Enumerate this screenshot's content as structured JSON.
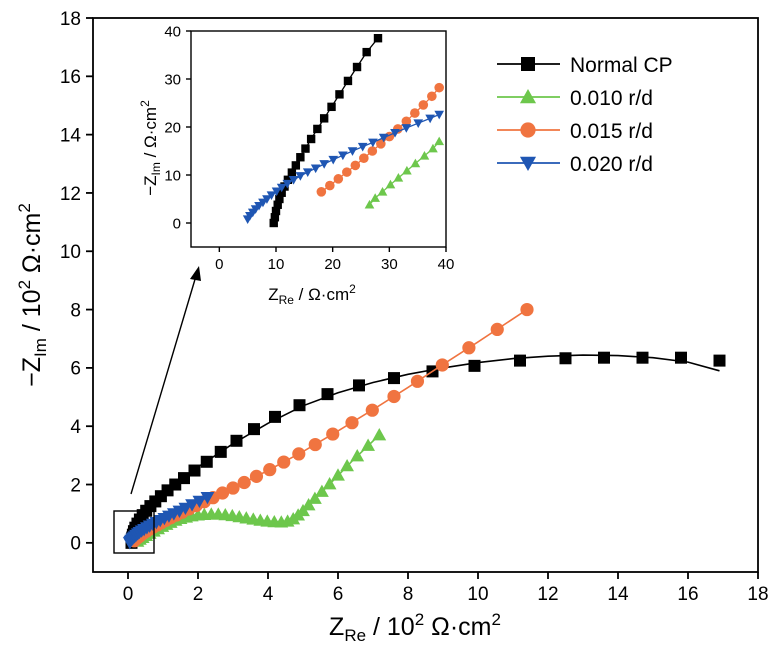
{
  "chart_data": {
    "type": "scatter",
    "xlabel": {
      "main": "Z",
      "sub": "Re",
      "rest": " / 10",
      "sup": "2",
      "tail": " Ω·cm",
      "sup2": "2"
    },
    "ylabel": {
      "main": "−Z",
      "sub": "Im",
      "rest": " / 10",
      "sup": "2",
      "tail": " Ω·cm",
      "sup2": "2"
    },
    "xlim": [
      -1,
      18
    ],
    "ylim": [
      -1,
      18
    ],
    "xticks": [
      0,
      2,
      4,
      6,
      8,
      10,
      12,
      14,
      16,
      18
    ],
    "yticks": [
      0,
      2,
      4,
      6,
      8,
      10,
      12,
      14,
      16,
      18
    ],
    "legend_position": "top-right",
    "series": [
      {
        "name": "Normal CP",
        "color": "#000000",
        "marker": "square",
        "points": [
          [
            0.1,
            0.0
          ],
          [
            0.11,
            0.1
          ],
          [
            0.12,
            0.18
          ],
          [
            0.14,
            0.28
          ],
          [
            0.17,
            0.4
          ],
          [
            0.21,
            0.52
          ],
          [
            0.27,
            0.66
          ],
          [
            0.34,
            0.8
          ],
          [
            0.42,
            0.95
          ],
          [
            0.52,
            1.1
          ],
          [
            0.64,
            1.26
          ],
          [
            0.78,
            1.42
          ],
          [
            0.94,
            1.6
          ],
          [
            1.13,
            1.8
          ],
          [
            1.35,
            2.0
          ],
          [
            1.6,
            2.22
          ],
          [
            1.9,
            2.48
          ],
          [
            2.25,
            2.78
          ],
          [
            2.65,
            3.12
          ],
          [
            3.1,
            3.5
          ],
          [
            3.6,
            3.9
          ],
          [
            4.2,
            4.32
          ],
          [
            4.9,
            4.72
          ],
          [
            5.7,
            5.1
          ],
          [
            6.6,
            5.4
          ],
          [
            7.6,
            5.65
          ],
          [
            8.7,
            5.88
          ],
          [
            9.9,
            6.07
          ],
          [
            11.2,
            6.25
          ],
          [
            12.5,
            6.33
          ],
          [
            13.6,
            6.35
          ],
          [
            14.7,
            6.35
          ],
          [
            15.8,
            6.35
          ],
          [
            16.9,
            6.25
          ]
        ],
        "fit": [
          [
            0.1,
            0.0
          ],
          [
            0.4,
            0.75
          ],
          [
            1.0,
            1.6
          ],
          [
            2.0,
            2.6
          ],
          [
            3.0,
            3.4
          ],
          [
            4.0,
            4.1
          ],
          [
            5.0,
            4.7
          ],
          [
            6.0,
            5.15
          ],
          [
            7.0,
            5.5
          ],
          [
            8.0,
            5.78
          ],
          [
            9.0,
            6.0
          ],
          [
            10.0,
            6.18
          ],
          [
            11.0,
            6.32
          ],
          [
            12.0,
            6.4
          ],
          [
            13.0,
            6.44
          ],
          [
            14.0,
            6.42
          ],
          [
            15.0,
            6.35
          ],
          [
            16.0,
            6.2
          ],
          [
            16.9,
            5.9
          ]
        ]
      },
      {
        "name": "0.010 r/d",
        "color": "#6dc74c",
        "marker": "triangle-up",
        "points": [
          [
            0.27,
            0.05
          ],
          [
            0.34,
            0.12
          ],
          [
            0.42,
            0.18
          ],
          [
            0.52,
            0.25
          ],
          [
            0.62,
            0.32
          ],
          [
            0.74,
            0.4
          ],
          [
            0.86,
            0.48
          ],
          [
            0.98,
            0.56
          ],
          [
            1.1,
            0.63
          ],
          [
            1.22,
            0.7
          ],
          [
            1.36,
            0.77
          ],
          [
            1.5,
            0.83
          ],
          [
            1.66,
            0.88
          ],
          [
            1.82,
            0.92
          ],
          [
            2.0,
            0.95
          ],
          [
            2.18,
            0.97
          ],
          [
            2.38,
            0.98
          ],
          [
            2.58,
            0.98
          ],
          [
            2.78,
            0.96
          ],
          [
            2.98,
            0.93
          ],
          [
            3.18,
            0.89
          ],
          [
            3.38,
            0.85
          ],
          [
            3.58,
            0.81
          ],
          [
            3.78,
            0.77
          ],
          [
            3.98,
            0.74
          ],
          [
            4.18,
            0.72
          ],
          [
            4.38,
            0.71
          ],
          [
            4.56,
            0.74
          ],
          [
            4.72,
            0.82
          ],
          [
            4.86,
            0.95
          ],
          [
            5.0,
            1.1
          ],
          [
            5.16,
            1.3
          ],
          [
            5.34,
            1.52
          ],
          [
            5.54,
            1.76
          ],
          [
            5.76,
            2.02
          ],
          [
            6.0,
            2.32
          ],
          [
            6.26,
            2.64
          ],
          [
            6.55,
            2.98
          ],
          [
            6.86,
            3.34
          ],
          [
            7.18,
            3.7
          ]
        ],
        "fit": [
          [
            0.27,
            0.05
          ],
          [
            0.8,
            0.45
          ],
          [
            1.4,
            0.78
          ],
          [
            2.0,
            0.95
          ],
          [
            2.6,
            0.97
          ],
          [
            3.2,
            0.89
          ],
          [
            3.8,
            0.77
          ],
          [
            4.4,
            0.71
          ],
          [
            4.8,
            0.88
          ],
          [
            5.2,
            1.34
          ],
          [
            5.8,
            2.06
          ],
          [
            6.4,
            2.8
          ],
          [
            7.18,
            3.7
          ]
        ]
      },
      {
        "name": "0.015 r/d",
        "color": "#f07440",
        "marker": "circle",
        "points": [
          [
            0.18,
            0.07
          ],
          [
            0.22,
            0.12
          ],
          [
            0.27,
            0.17
          ],
          [
            0.32,
            0.22
          ],
          [
            0.38,
            0.28
          ],
          [
            0.45,
            0.34
          ],
          [
            0.53,
            0.4
          ],
          [
            0.62,
            0.47
          ],
          [
            0.72,
            0.54
          ],
          [
            0.83,
            0.61
          ],
          [
            0.95,
            0.69
          ],
          [
            1.08,
            0.77
          ],
          [
            1.22,
            0.86
          ],
          [
            1.38,
            0.95
          ],
          [
            1.55,
            1.05
          ],
          [
            1.74,
            1.16
          ],
          [
            1.95,
            1.28
          ],
          [
            2.18,
            1.41
          ],
          [
            2.43,
            1.55
          ],
          [
            2.7,
            1.71
          ],
          [
            3.0,
            1.88
          ],
          [
            3.32,
            2.07
          ],
          [
            3.67,
            2.28
          ],
          [
            4.05,
            2.51
          ],
          [
            4.45,
            2.77
          ],
          [
            4.88,
            3.05
          ],
          [
            5.35,
            3.37
          ],
          [
            5.85,
            3.73
          ],
          [
            6.4,
            4.12
          ],
          [
            6.98,
            4.55
          ],
          [
            7.6,
            5.02
          ],
          [
            8.27,
            5.54
          ],
          [
            8.98,
            6.1
          ],
          [
            9.74,
            6.69
          ],
          [
            10.55,
            7.32
          ],
          [
            11.4,
            8.0
          ]
        ],
        "fit": [
          [
            0.18,
            0.07
          ],
          [
            1.0,
            0.72
          ],
          [
            2.0,
            1.31
          ],
          [
            3.0,
            1.88
          ],
          [
            4.0,
            2.48
          ],
          [
            5.0,
            3.13
          ],
          [
            6.0,
            3.84
          ],
          [
            7.0,
            4.57
          ],
          [
            8.0,
            5.33
          ],
          [
            9.0,
            6.12
          ],
          [
            10.0,
            6.89
          ],
          [
            11.4,
            8.0
          ]
        ]
      },
      {
        "name": "0.020 r/d",
        "color": "#1f56b3",
        "marker": "triangle-down",
        "points": [
          [
            0.05,
            0.01
          ],
          [
            0.07,
            0.05
          ],
          [
            0.09,
            0.09
          ],
          [
            0.12,
            0.13
          ],
          [
            0.15,
            0.17
          ],
          [
            0.19,
            0.21
          ],
          [
            0.23,
            0.26
          ],
          [
            0.28,
            0.31
          ],
          [
            0.33,
            0.36
          ],
          [
            0.39,
            0.41
          ],
          [
            0.46,
            0.46
          ],
          [
            0.54,
            0.52
          ],
          [
            0.62,
            0.58
          ],
          [
            0.71,
            0.64
          ],
          [
            0.81,
            0.7
          ],
          [
            0.92,
            0.77
          ],
          [
            1.04,
            0.84
          ],
          [
            1.17,
            0.92
          ],
          [
            1.31,
            1.0
          ],
          [
            1.47,
            1.09
          ],
          [
            1.64,
            1.19
          ],
          [
            1.83,
            1.31
          ],
          [
            2.04,
            1.43
          ],
          [
            2.27,
            1.56
          ]
        ],
        "fit": [
          [
            0.05,
            0.01
          ],
          [
            0.5,
            0.49
          ],
          [
            1.0,
            0.82
          ],
          [
            1.5,
            1.11
          ],
          [
            2.27,
            1.56
          ]
        ]
      }
    ],
    "inset": {
      "xlabel": {
        "main": "Z",
        "sub": "Re",
        "rest": " / Ω·cm",
        "sup": "2"
      },
      "ylabel": {
        "main": "−Z",
        "sub": "Im",
        "rest": " / Ω·cm",
        "sup": "2"
      },
      "xlim": [
        -5,
        40
      ],
      "ylim": [
        -5,
        40
      ],
      "xticks": [
        0,
        10,
        20,
        30,
        40
      ],
      "yticks": [
        0,
        10,
        20,
        30,
        40
      ],
      "series": [
        {
          "name": "Normal CP",
          "points": [
            [
              9.6,
              0.0
            ],
            [
              9.8,
              1.2
            ],
            [
              10.0,
              2.5
            ],
            [
              10.3,
              3.8
            ],
            [
              10.6,
              5.0
            ],
            [
              11.0,
              6.3
            ],
            [
              11.5,
              7.6
            ],
            [
              12.1,
              9.0
            ],
            [
              12.8,
              10.5
            ],
            [
              13.5,
              12.0
            ],
            [
              14.3,
              13.7
            ],
            [
              15.2,
              15.5
            ],
            [
              16.2,
              17.5
            ],
            [
              17.3,
              19.6
            ],
            [
              18.5,
              21.8
            ],
            [
              19.8,
              24.2
            ],
            [
              21.2,
              26.8
            ],
            [
              22.7,
              29.6
            ],
            [
              24.3,
              32.5
            ],
            [
              26.0,
              35.6
            ],
            [
              28.0,
              38.5
            ]
          ]
        },
        {
          "name": "0.010 r/d",
          "points": [
            [
              26.5,
              3.8
            ],
            [
              27.5,
              5.2
            ],
            [
              28.8,
              6.5
            ],
            [
              30.2,
              8.0
            ],
            [
              31.6,
              9.4
            ],
            [
              33.1,
              10.9
            ],
            [
              34.6,
              12.4
            ],
            [
              36.2,
              14.0
            ],
            [
              37.7,
              15.5
            ],
            [
              38.8,
              17.0
            ]
          ]
        },
        {
          "name": "0.015 r/d",
          "points": [
            [
              18.0,
              6.5
            ],
            [
              19.5,
              7.8
            ],
            [
              21.0,
              9.2
            ],
            [
              22.5,
              10.6
            ],
            [
              24.0,
              12.0
            ],
            [
              25.5,
              13.5
            ],
            [
              27.0,
              15.0
            ],
            [
              28.5,
              16.5
            ],
            [
              30.0,
              18.0
            ],
            [
              31.5,
              19.6
            ],
            [
              33.0,
              21.2
            ],
            [
              34.5,
              22.9
            ],
            [
              36.0,
              24.6
            ],
            [
              37.5,
              26.4
            ],
            [
              38.8,
              28.2
            ]
          ]
        },
        {
          "name": "0.020 r/d",
          "points": [
            [
              5.0,
              0.8
            ],
            [
              5.4,
              1.5
            ],
            [
              5.9,
              2.2
            ],
            [
              6.4,
              2.9
            ],
            [
              7.0,
              3.6
            ],
            [
              7.7,
              4.3
            ],
            [
              8.4,
              5.0
            ],
            [
              9.2,
              5.8
            ],
            [
              10.1,
              6.6
            ],
            [
              11.0,
              7.4
            ],
            [
              12.0,
              8.2
            ],
            [
              13.1,
              9.0
            ],
            [
              14.3,
              9.8
            ],
            [
              15.6,
              10.6
            ],
            [
              17.0,
              11.4
            ],
            [
              18.5,
              12.3
            ],
            [
              20.1,
              13.2
            ],
            [
              21.8,
              14.1
            ],
            [
              23.5,
              15.0
            ],
            [
              25.3,
              15.9
            ],
            [
              27.1,
              16.8
            ],
            [
              29.0,
              17.8
            ],
            [
              31.0,
              18.8
            ],
            [
              33.0,
              19.8
            ],
            [
              35.1,
              20.8
            ],
            [
              37.2,
              21.8
            ],
            [
              38.8,
              22.6
            ]
          ]
        }
      ]
    }
  }
}
